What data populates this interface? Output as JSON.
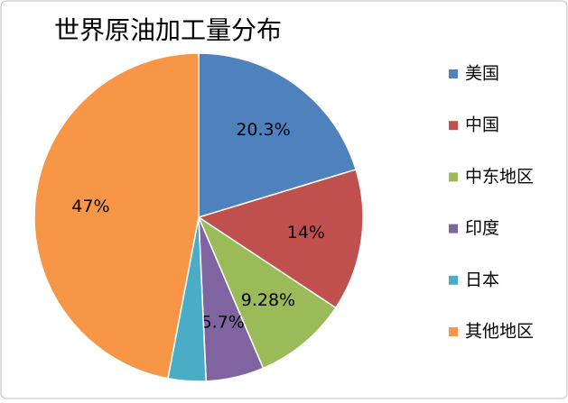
{
  "chart_data": {
    "type": "pie",
    "title": "世界原油加工量分布",
    "categories": [
      "美国",
      "中国",
      "中东地区",
      "印度",
      "日本",
      "其他地区"
    ],
    "values": [
      20.3,
      14,
      9.28,
      5.7,
      3.72,
      47
    ],
    "value_labels": [
      "20.3%",
      "14%",
      "9.28%",
      "5.7%",
      null,
      "47%"
    ],
    "colors": [
      "#4f81bd",
      "#c0504d",
      "#9bbb59",
      "#8064a2",
      "#4bacc6",
      "#f79646"
    ],
    "legend": "right"
  }
}
